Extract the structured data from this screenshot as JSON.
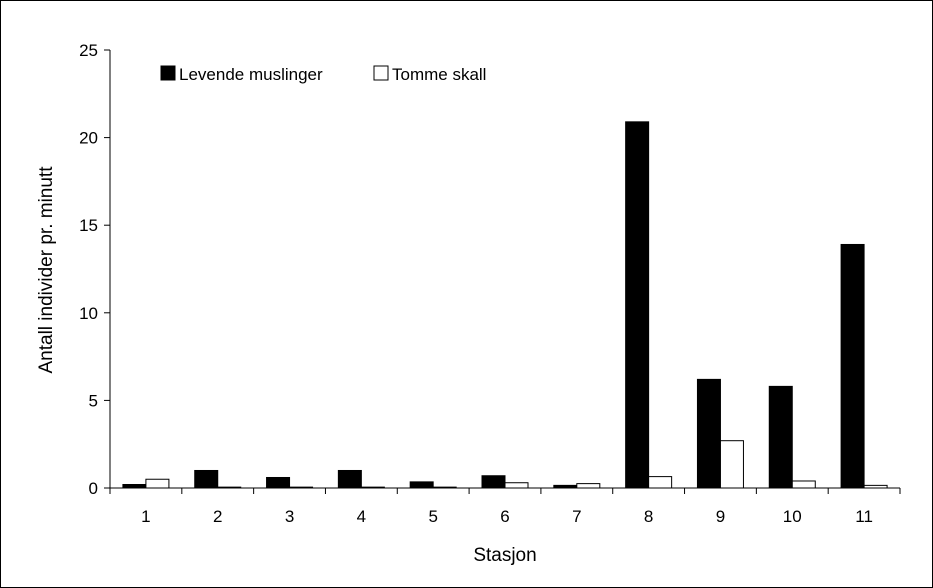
{
  "chart_data": {
    "type": "bar",
    "categories": [
      "1",
      "2",
      "3",
      "4",
      "5",
      "6",
      "7",
      "8",
      "9",
      "10",
      "11"
    ],
    "series": [
      {
        "name": "Levende muslinger",
        "color": "#000000",
        "values": [
          0.2,
          1.0,
          0.6,
          1.0,
          0.35,
          0.7,
          0.15,
          20.9,
          6.2,
          5.8,
          13.9
        ]
      },
      {
        "name": "Tomme skall",
        "color": "#ffffff",
        "values": [
          0.5,
          0.05,
          0.05,
          0.05,
          0.05,
          0.3,
          0.25,
          0.65,
          2.7,
          0.4,
          0.15
        ]
      }
    ],
    "title": "",
    "xlabel": "Stasjon",
    "ylabel": "Antall individer pr. minutt",
    "ylim": [
      0,
      25
    ],
    "yticks": [
      0,
      5,
      10,
      15,
      20,
      25
    ],
    "grid": false,
    "legend_position": "top-left"
  }
}
